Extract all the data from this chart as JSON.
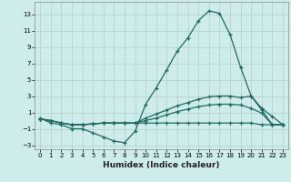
{
  "xlabel": "Humidex (Indice chaleur)",
  "background_color": "#ceecea",
  "grid_color": "#b0cfcc",
  "line_color": "#1e6b60",
  "x_values": [
    0,
    1,
    2,
    3,
    4,
    5,
    6,
    7,
    8,
    9,
    10,
    11,
    12,
    13,
    14,
    15,
    16,
    17,
    18,
    19,
    20,
    21,
    22,
    23
  ],
  "line1": [
    0.3,
    -0.3,
    -0.5,
    -1.0,
    -1.0,
    -1.5,
    -2.0,
    -2.5,
    -2.7,
    -1.3,
    2.0,
    4.0,
    6.2,
    8.5,
    10.1,
    12.2,
    13.4,
    13.1,
    10.5,
    6.5,
    3.0,
    1.5,
    0.5,
    -0.5
  ],
  "line2": [
    0.2,
    0.0,
    -0.3,
    -0.5,
    -0.5,
    -0.4,
    -0.3,
    -0.3,
    -0.3,
    -0.3,
    0.3,
    0.8,
    1.3,
    1.8,
    2.2,
    2.6,
    2.9,
    3.0,
    3.0,
    2.8,
    3.0,
    1.3,
    -0.5,
    -0.5
  ],
  "line3": [
    0.2,
    0.0,
    -0.3,
    -0.5,
    -0.5,
    -0.4,
    -0.3,
    -0.3,
    -0.3,
    -0.3,
    0.0,
    0.3,
    0.7,
    1.1,
    1.4,
    1.7,
    1.9,
    2.0,
    2.0,
    1.9,
    1.5,
    0.9,
    -0.5,
    -0.5
  ],
  "line4": [
    0.2,
    0.0,
    -0.3,
    -0.5,
    -0.5,
    -0.4,
    -0.3,
    -0.3,
    -0.3,
    -0.3,
    -0.3,
    -0.3,
    -0.3,
    -0.3,
    -0.3,
    -0.3,
    -0.3,
    -0.3,
    -0.3,
    -0.3,
    -0.3,
    -0.5,
    -0.5,
    -0.5
  ],
  "ylim": [
    -3.5,
    14.5
  ],
  "xlim": [
    -0.5,
    23.5
  ],
  "yticks": [
    -3,
    -1,
    1,
    3,
    5,
    7,
    9,
    11,
    13
  ],
  "xticks": [
    0,
    1,
    2,
    3,
    4,
    5,
    6,
    7,
    8,
    9,
    10,
    11,
    12,
    13,
    14,
    15,
    16,
    17,
    18,
    19,
    20,
    21,
    22,
    23
  ]
}
